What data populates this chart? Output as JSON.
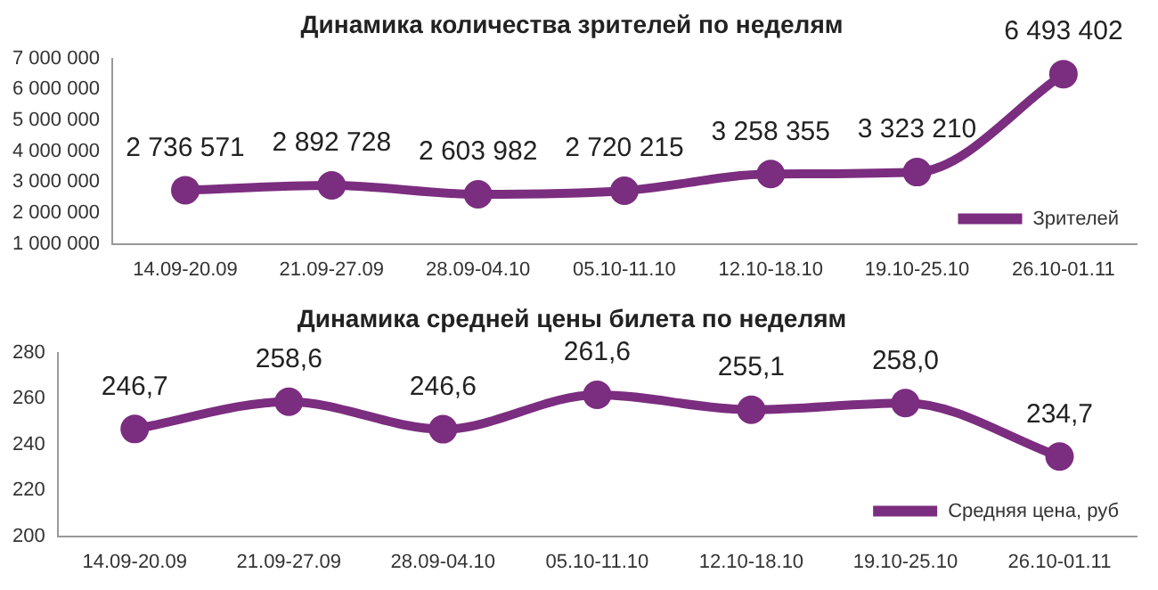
{
  "chart_data": [
    {
      "type": "line",
      "title": "Динамика количества зрителей по неделям",
      "categories": [
        "14.09-20.09",
        "21.09-27.09",
        "28.09-04.10",
        "05.10-11.10",
        "12.10-18.10",
        "19.10-25.10",
        "26.10-01.11"
      ],
      "series": [
        {
          "name": "Зрителей",
          "color": "#7b2d7f",
          "values": [
            2736571,
            2892728,
            2603982,
            2720215,
            3258355,
            3323210,
            6493402
          ],
          "value_labels": [
            "2 736 571",
            "2 892 728",
            "2 603 982",
            "2 720 215",
            "3 258 355",
            "3 323 210",
            "6 493 402"
          ]
        }
      ],
      "ylim": [
        1000000,
        7000000
      ],
      "yticks": [
        {
          "value": 1000000,
          "label": "1 000 000"
        },
        {
          "value": 2000000,
          "label": "2 000 000"
        },
        {
          "value": 3000000,
          "label": "3 000 000"
        },
        {
          "value": 4000000,
          "label": "4 000 000"
        },
        {
          "value": 5000000,
          "label": "5 000 000"
        },
        {
          "value": 6000000,
          "label": "6 000 000"
        },
        {
          "value": 7000000,
          "label": "7 000 000"
        }
      ],
      "grid": false,
      "legend": "bottom right",
      "marker": "circle",
      "line_style": "solid"
    },
    {
      "type": "line",
      "title": "Динамика средней цены билета по неделям",
      "categories": [
        "14.09-20.09",
        "21.09-27.09",
        "28.09-04.10",
        "05.10-11.10",
        "12.10-18.10",
        "19.10-25.10",
        "26.10-01.11"
      ],
      "series": [
        {
          "name": "Средняя цена, руб",
          "color": "#7b2d7f",
          "values": [
            246.7,
            258.6,
            246.6,
            261.6,
            255.1,
            258.0,
            234.7
          ],
          "value_labels": [
            "246,7",
            "258,6",
            "246,6",
            "261,6",
            "255,1",
            "258,0",
            "234,7"
          ]
        }
      ],
      "ylim": [
        200,
        280
      ],
      "yticks": [
        200,
        220,
        240,
        260,
        280
      ],
      "grid": false,
      "legend": "bottom right",
      "marker": "circle",
      "line_style": "solid"
    }
  ]
}
